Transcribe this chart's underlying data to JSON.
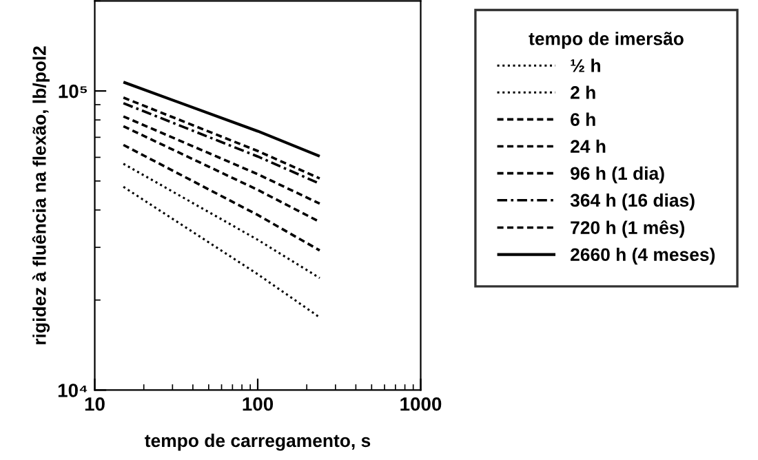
{
  "chart_data": {
    "type": "line",
    "xlabel": "tempo de carregamento, s",
    "ylabel": "rigidez à fluência na flexão, lb/pol2",
    "legend_title": "tempo de imersão",
    "legend": "right",
    "log": "xy",
    "grid": false,
    "xlim": [
      10,
      1000
    ],
    "xticks": [
      10,
      100,
      1000
    ],
    "ylim": [
      10000,
      200000
    ],
    "yticks": [
      {
        "value": 10000,
        "label": "10⁴"
      },
      {
        "value": 100000,
        "label": "10⁵"
      }
    ],
    "x": [
      15,
      100,
      240
    ],
    "series": [
      {
        "name": "½ h",
        "color": "#000000",
        "line_style": "dotted",
        "values": [
          47800,
          24400,
          17500
        ]
      },
      {
        "name": "2 h",
        "color": "#000000",
        "line_style": "dotted",
        "values": [
          57100,
          31800,
          23700
        ]
      },
      {
        "name": "6 h",
        "color": "#000000",
        "line_style": "dashed",
        "values": [
          66000,
          38500,
          29300
        ]
      },
      {
        "name": "24 h",
        "color": "#000000",
        "line_style": "dashed",
        "values": [
          76200,
          46700,
          36500
        ]
      },
      {
        "name": "96 h (1 dia)",
        "color": "#000000",
        "line_style": "dashed",
        "values": [
          82200,
          52700,
          42000
        ]
      },
      {
        "name": "364 h (16 dias)",
        "color": "#000000",
        "line_style": "dashdot",
        "values": [
          91000,
          60400,
          49000
        ]
      },
      {
        "name": "720 h (1 mês)",
        "color": "#000000",
        "line_style": "dashed",
        "values": [
          95000,
          63000,
          51000
        ]
      },
      {
        "name": "2660 h (4 meses)",
        "color": "#000000",
        "line_style": "solid",
        "values": [
          107000,
          73400,
          60500
        ]
      }
    ]
  }
}
